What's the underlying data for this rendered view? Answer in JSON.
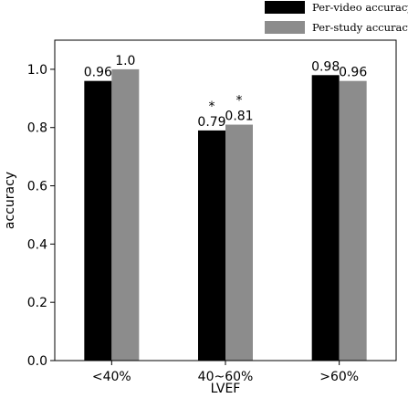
{
  "chart_data": {
    "type": "bar",
    "categories": [
      "<40%",
      "40~60%",
      ">60%"
    ],
    "series": [
      {
        "name": "Per-video accuracy",
        "color": "#000000",
        "values": [
          0.96,
          0.79,
          0.98
        ],
        "labels": [
          "0.96",
          "0.79",
          "0.98"
        ]
      },
      {
        "name": "Per-study accuracy",
        "color": "#8c8c8c",
        "values": [
          1.0,
          0.81,
          0.96
        ],
        "labels": [
          "1.0",
          "0.81",
          "0.96"
        ]
      }
    ],
    "annotations": [
      {
        "category": "40~60%",
        "series": 0,
        "text": "*"
      },
      {
        "category": "40~60%",
        "series": 1,
        "text": "*"
      }
    ],
    "xlabel": "LVEF",
    "ylabel": "accuracy",
    "ylim": [
      0,
      1.1
    ],
    "yticks": [
      0.0,
      0.2,
      0.4,
      0.6,
      0.8,
      1.0
    ],
    "ytick_labels": [
      "0.0",
      "0.2",
      "0.4",
      "0.6",
      "0.8",
      "1.0"
    ],
    "grid": false,
    "legend_position": "above-top-right"
  }
}
